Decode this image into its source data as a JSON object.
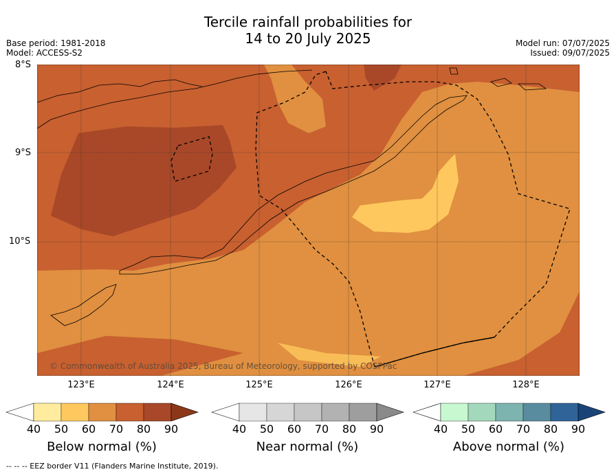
{
  "title_line1": "Tercile rainfall probabilities for",
  "title_line2": "14 to 20 July 2025",
  "meta_left": [
    "Base period: 1981-2018",
    "Model: ACCESS-S2"
  ],
  "meta_right": [
    "Model run: 07/07/2025",
    "Issued: 09/07/2025"
  ],
  "lat_labels": [
    "8°S",
    "9°S",
    "10°S"
  ],
  "lon_labels": [
    "123°E",
    "124°E",
    "125°E",
    "126°E",
    "127°E",
    "128°E"
  ],
  "copyright": "© Commonwealth of Australia 2025, Bureau of Meteorology, supported by COSPPac",
  "colorbars": [
    {
      "title": "Below normal (%)",
      "ticks": [
        "40",
        "50",
        "60",
        "70",
        "80",
        "90"
      ],
      "colors": [
        "#ffffff",
        "#ffec9e",
        "#ffc85e",
        "#e09040",
        "#c86030",
        "#a84828",
        "#8c3818"
      ]
    },
    {
      "title": "Near normal (%)",
      "ticks": [
        "40",
        "50",
        "60",
        "70",
        "80",
        "90"
      ],
      "colors": [
        "#ffffff",
        "#e6e6e6",
        "#d6d6d6",
        "#c6c6c6",
        "#b2b2b2",
        "#9e9e9e",
        "#8a8a8a"
      ]
    },
    {
      "title": "Above normal (%)",
      "ticks": [
        "40",
        "50",
        "60",
        "70",
        "80",
        "90"
      ],
      "colors": [
        "#ffffff",
        "#c8f8d0",
        "#a4d8bc",
        "#7eb4b0",
        "#5a8ca0",
        "#306498",
        "#1a4478"
      ]
    }
  ],
  "footer": "--  --  -- EEZ border V11 (Flanders Marine Institute, 2019).",
  "map_colors": {
    "c50_60": "#ffc85e",
    "c60_70": "#e09040",
    "c70_80": "#c86030",
    "c80_90": "#a84828"
  }
}
